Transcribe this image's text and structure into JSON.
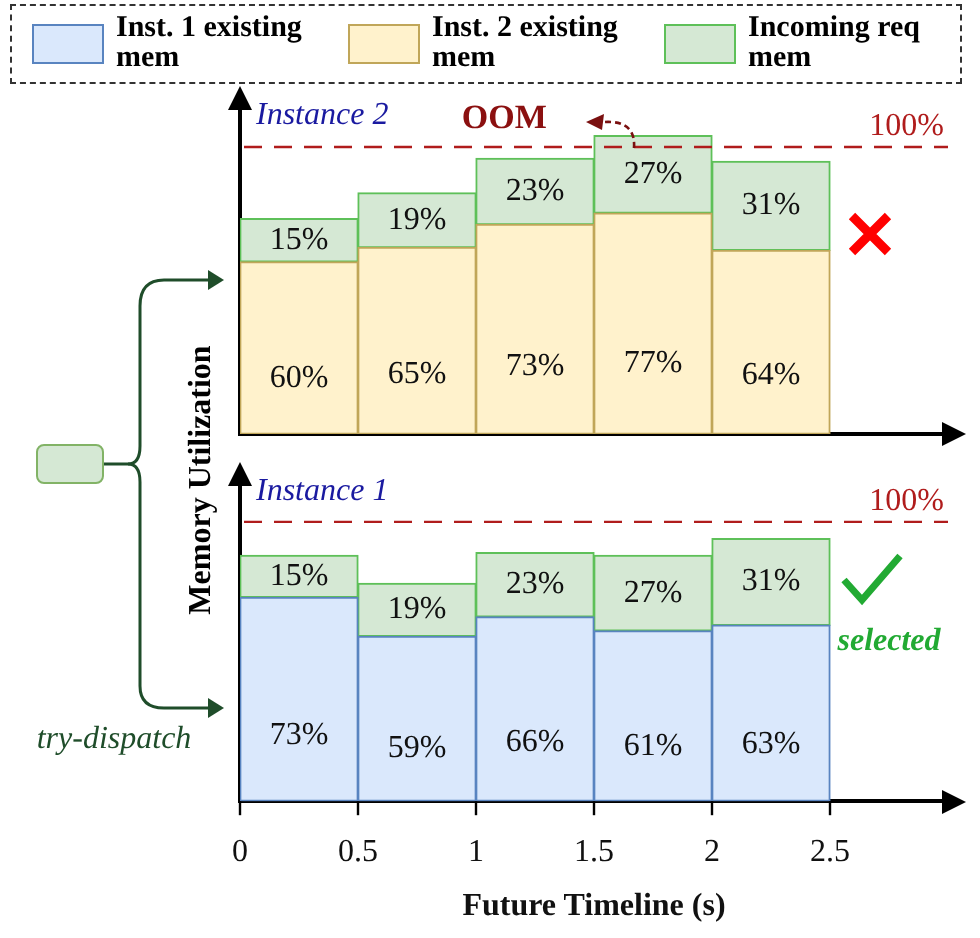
{
  "chart_data": [
    {
      "type": "bar",
      "title": "Instance 2",
      "ylabel": "Memory Utilization",
      "x": [
        0.25,
        0.75,
        1.25,
        1.75,
        2.25
      ],
      "xlim": [
        0,
        3
      ],
      "xticks": [
        0,
        0.5,
        1,
        1.5,
        2,
        2.5
      ],
      "ylim": [
        0,
        115
      ],
      "stacked": true,
      "legend": "top",
      "tick_labels": false,
      "grid": false,
      "series": [
        {
          "name": "Inst. 2 existing mem",
          "color": "#fff2cc",
          "values": [
            60,
            65,
            73,
            77,
            64
          ],
          "value_labels": [
            "60%",
            "65%",
            "73%",
            "77%",
            "64%"
          ]
        },
        {
          "name": "Incoming req mem",
          "color": "#d5e8d4",
          "values": [
            15,
            19,
            23,
            27,
            31
          ],
          "value_labels": [
            "15%",
            "19%",
            "23%",
            "27%",
            "31%"
          ]
        }
      ],
      "ref_lines": [
        {
          "axis": "y",
          "value": 100,
          "label": "100%",
          "color": "#b01c1c",
          "line_style": "dashed"
        }
      ],
      "annotations": [
        "OOM"
      ]
    },
    {
      "type": "bar",
      "title": "Instance 1",
      "xlabel": "Future Timeline (s)",
      "x": [
        0.25,
        0.75,
        1.25,
        1.75,
        2.25
      ],
      "xlim": [
        0,
        3
      ],
      "xticks": [
        0,
        0.5,
        1,
        1.5,
        2,
        2.5
      ],
      "ylim": [
        0,
        115
      ],
      "stacked": true,
      "legend": "top",
      "tick_labels": "x",
      "grid": false,
      "series": [
        {
          "name": "Inst. 1 existing mem",
          "color": "#dae8fc",
          "values": [
            73,
            59,
            66,
            61,
            63
          ],
          "value_labels": [
            "73%",
            "59%",
            "66%",
            "61%",
            "63%"
          ]
        },
        {
          "color": "#d5e8d4",
          "values": [
            15,
            19,
            23,
            27,
            31
          ],
          "value_labels": [
            "15%",
            "19%",
            "23%",
            "27%",
            "31%"
          ]
        }
      ],
      "ref_lines": [
        {
          "axis": "y",
          "value": 100,
          "label": "100%",
          "color": "#b01c1c",
          "line_style": "dashed"
        }
      ],
      "annotations": [
        "selected",
        "try-dispatch"
      ]
    }
  ]
}
